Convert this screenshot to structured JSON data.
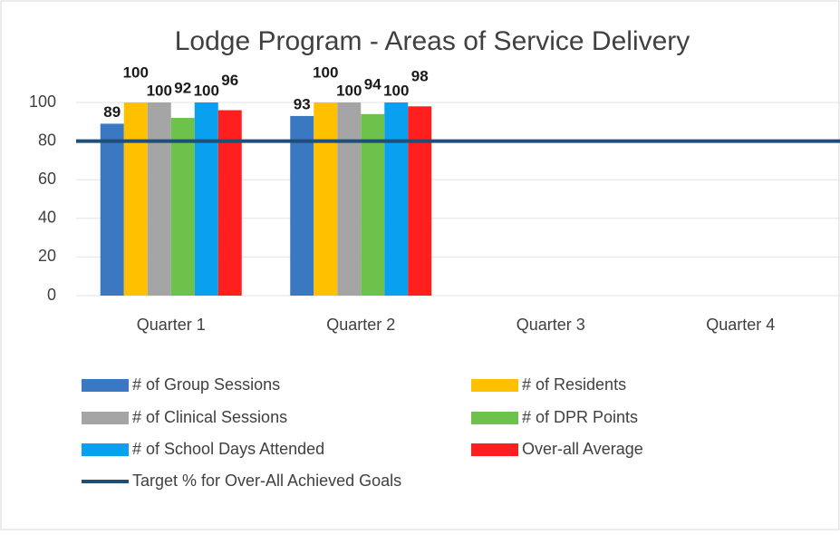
{
  "chart_data": {
    "type": "bar",
    "title": "Lodge Program - Areas of Service Delivery",
    "categories": [
      "Quarter 1",
      "Quarter 2",
      "Quarter 3",
      "Quarter 4"
    ],
    "series": [
      {
        "name": "# of Group Sessions",
        "color": "#3a78c2",
        "values": [
          89,
          93,
          null,
          null
        ]
      },
      {
        "name": "# of Residents",
        "color": "#ffc000",
        "values": [
          100,
          100,
          null,
          null
        ]
      },
      {
        "name": "# of Clinical Sessions",
        "color": "#a5a5a5",
        "values": [
          100,
          100,
          null,
          null
        ]
      },
      {
        "name": "# of DPR Points",
        "color": "#6cc24a",
        "values": [
          92,
          94,
          null,
          null
        ]
      },
      {
        "name": "# of School Days Attended",
        "color": "#0aa0f0",
        "values": [
          100,
          100,
          null,
          null
        ]
      },
      {
        "name": "Over-all Average",
        "color": "#ff1f1f",
        "values": [
          96,
          98,
          null,
          null
        ]
      }
    ],
    "target": {
      "name": "Target % for Over-All Achieved Goals",
      "value": 80,
      "color": "#1f4e79"
    },
    "ylim": [
      0,
      100
    ],
    "yticks": [
      0,
      20,
      40,
      60,
      80,
      100
    ],
    "grid": true,
    "legend": "bottom"
  }
}
